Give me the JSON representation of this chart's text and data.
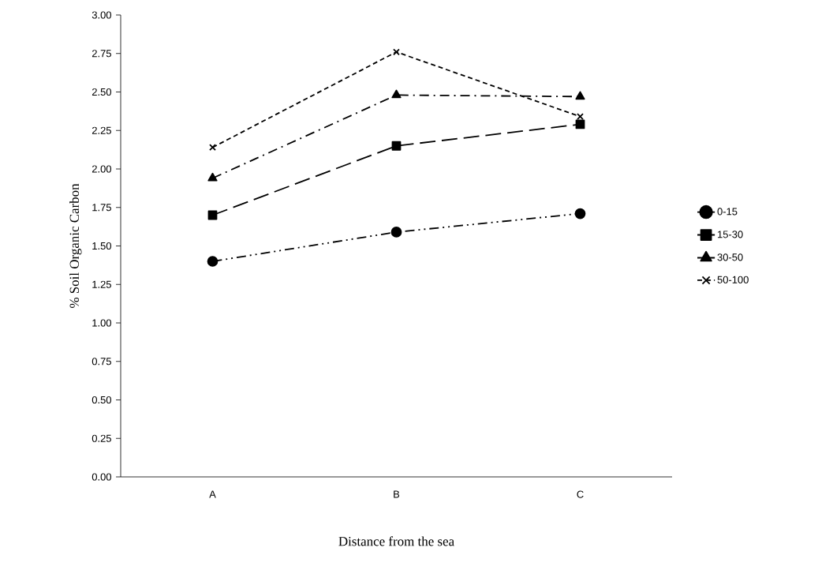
{
  "chart_data": {
    "type": "line",
    "xlabel": "Distance from the sea",
    "ylabel": "% Soil Organic Carbon",
    "categories": [
      "A",
      "B",
      "C"
    ],
    "series": [
      {
        "name": "0-15",
        "color": "#000000",
        "marker": "circle",
        "line_style": "dashdotdotted",
        "values": [
          1.4,
          1.59,
          1.71
        ]
      },
      {
        "name": "15-30",
        "color": "#000000",
        "marker": "square",
        "line_style": "long dashed",
        "values": [
          1.7,
          2.15,
          2.29
        ]
      },
      {
        "name": "30-50",
        "color": "#000000",
        "marker": "triangle",
        "line_style": "dashdotted",
        "values": [
          1.94,
          2.48,
          2.47
        ]
      },
      {
        "name": "50-100",
        "color": "#000000",
        "marker": "cross",
        "line_style": "dashed",
        "values": [
          2.14,
          2.76,
          2.34
        ]
      }
    ],
    "ylim": [
      0,
      3
    ],
    "yticks": [
      {
        "value": 0,
        "label": "0.00"
      },
      {
        "value": 0.25,
        "label": "0.25"
      },
      {
        "value": 0.5,
        "label": "0.50"
      },
      {
        "value": 0.75,
        "label": "0.75"
      },
      {
        "value": 1,
        "label": "1.00"
      },
      {
        "value": 1.25,
        "label": "1.25"
      },
      {
        "value": 1.5,
        "label": "1.50"
      },
      {
        "value": 1.75,
        "label": "1.75"
      },
      {
        "value": 2,
        "label": "2.00"
      },
      {
        "value": 2.25,
        "label": "2.25"
      },
      {
        "value": 2.5,
        "label": "2.50"
      },
      {
        "value": 2.75,
        "label": "2.75"
      },
      {
        "value": 3,
        "label": "3.00"
      }
    ],
    "grid": false,
    "legend": "right"
  }
}
